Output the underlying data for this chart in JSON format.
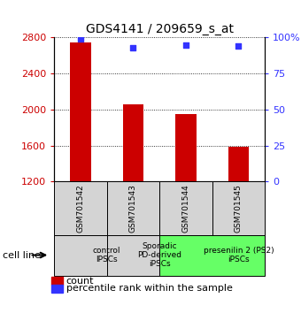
{
  "title": "GDS4141 / 209659_s_at",
  "samples": [
    "GSM701542",
    "GSM701543",
    "GSM701544",
    "GSM701545"
  ],
  "counts": [
    2750,
    2055,
    1950,
    1590
  ],
  "percentile_ranks": [
    99,
    93,
    95,
    94
  ],
  "ylim_left": [
    1200,
    2800
  ],
  "ylim_right": [
    0,
    100
  ],
  "yticks_left": [
    1200,
    1600,
    2000,
    2400,
    2800
  ],
  "yticks_right": [
    0,
    25,
    50,
    75,
    100
  ],
  "bar_color": "#cc0000",
  "dot_color": "#3333ff",
  "bar_width": 0.4,
  "groups": [
    {
      "label": "control\nIPSCs",
      "start": 0,
      "end": 1,
      "color": "#d4d4d4"
    },
    {
      "label": "Sporadic\nPD-derived\niPSCs",
      "start": 1,
      "end": 2,
      "color": "#d4d4d4"
    },
    {
      "label": "presenilin 2 (PS2)\niPSCs",
      "start": 2,
      "end": 4,
      "color": "#66ff66"
    }
  ],
  "cell_line_label": "cell line",
  "legend_count_label": "count",
  "legend_percentile_label": "percentile rank within the sample",
  "title_fontsize": 10,
  "tick_fontsize": 8,
  "sample_fontsize": 6.5,
  "group_fontsize": 6.5,
  "legend_fontsize": 8
}
